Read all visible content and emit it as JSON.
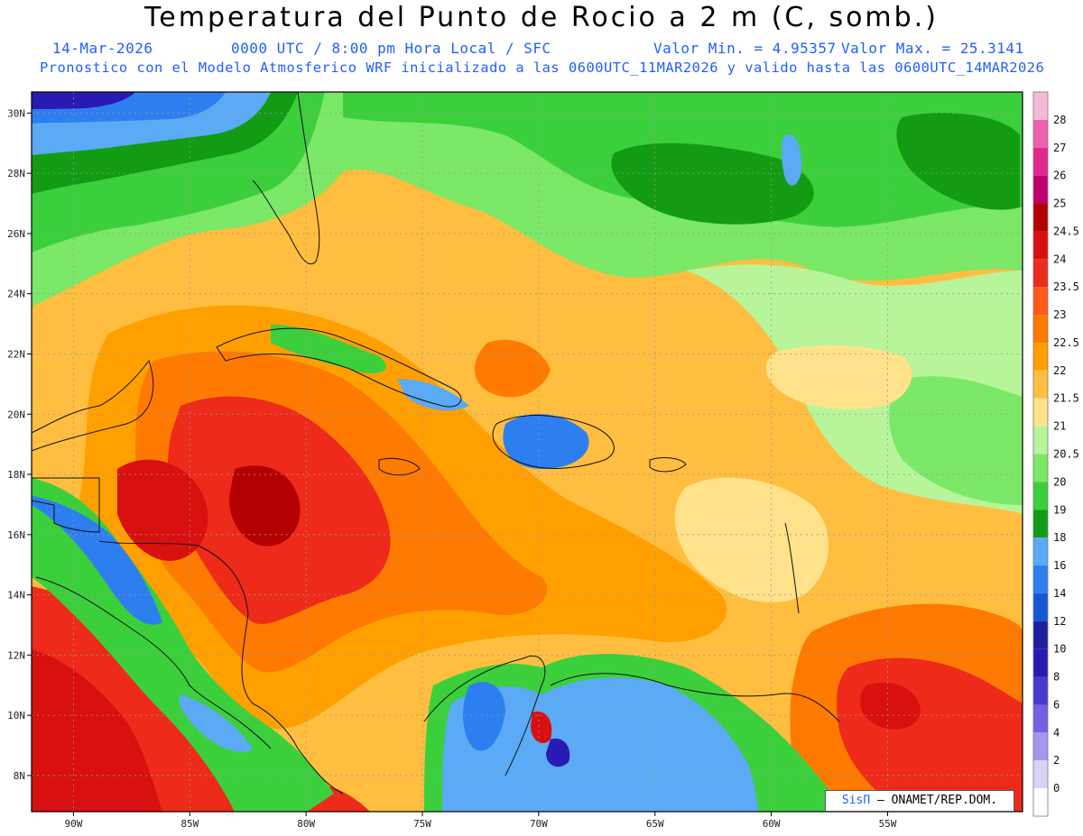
{
  "header": {
    "title": "Temperatura del Punto de Rocio a 2 m (C, somb.)",
    "date": "14-Mar-2026",
    "time": "0000 UTC / 8:00 pm Hora Local / SFC",
    "min_label": "Valor Min. = 4.95357",
    "max_label": "Valor Max. = 25.3141",
    "model_line": "Pronostico con el Modelo Atmosferico WRF inicializado a las 0600UTC_11MAR2026 y valido hasta las  0600UTC_14MAR2026"
  },
  "map": {
    "lat_ticks": [
      "30N",
      "28N",
      "26N",
      "24N",
      "22N",
      "20N",
      "18N",
      "16N",
      "14N",
      "12N",
      "10N",
      "8N"
    ],
    "lon_ticks": [
      "90W",
      "85W",
      "80W",
      "75W",
      "70W",
      "65W",
      "60W",
      "55W"
    ],
    "lat_values": [
      30,
      28,
      26,
      24,
      22,
      20,
      18,
      16,
      14,
      12,
      10,
      8
    ],
    "lon_values": [
      -90,
      -85,
      -80,
      -75,
      -70,
      -65,
      -60,
      -55
    ],
    "lat_range": [
      6.8,
      30.7
    ],
    "lon_range": [
      -91.8,
      -49.2
    ],
    "grid": true
  },
  "colorbar": {
    "labels": [
      "28",
      "27",
      "26",
      "25",
      "24.5",
      "24",
      "23.5",
      "23",
      "22.5",
      "22",
      "21.5",
      "21",
      "20.5",
      "20",
      "19",
      "18",
      "16",
      "14",
      "12",
      "10",
      "8",
      "6",
      "4",
      "2",
      "0"
    ],
    "colors": [
      "#f7b8dc",
      "#ef5fb0",
      "#e0288f",
      "#c00070",
      "#b40000",
      "#d81010",
      "#ee2a1a",
      "#ff5a1a",
      "#ff7a00",
      "#ffa000",
      "#ffbe40",
      "#ffe28a",
      "#b8f59a",
      "#7be868",
      "#3ccf3c",
      "#139b13",
      "#5aaaf5",
      "#2d7ff0",
      "#1457d2",
      "#1e1ea0",
      "#2a1ab4",
      "#4b38d2",
      "#7460e0",
      "#a795ee",
      "#d8d4f6",
      "#ffffff"
    ]
  },
  "credit": {
    "brand": "SisΠ",
    "text": "– ONAMET/REP.DOM."
  }
}
